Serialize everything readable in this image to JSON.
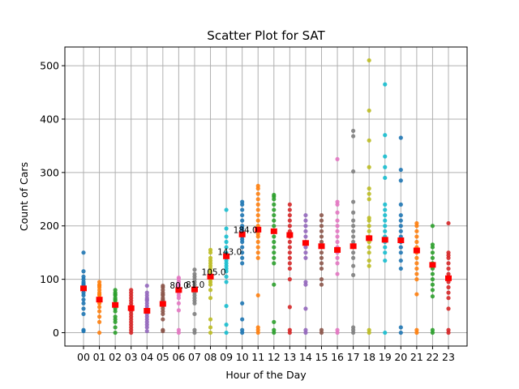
{
  "chart_data": {
    "type": "scatter",
    "title": "Scatter Plot for SAT",
    "xlabel": "Hour of the Day",
    "ylabel": "Count of Cars",
    "categories": [
      "00",
      "01",
      "02",
      "03",
      "04",
      "05",
      "06",
      "07",
      "08",
      "09",
      "10",
      "11",
      "12",
      "13",
      "14",
      "15",
      "16",
      "17",
      "18",
      "19",
      "20",
      "21",
      "22",
      "23"
    ],
    "ylim": [
      -25,
      535
    ],
    "yticks": [
      0,
      100,
      200,
      300,
      400,
      500
    ],
    "grid": true,
    "colors": [
      "#1f77b4",
      "#ff7f0e",
      "#2ca02c",
      "#d62728",
      "#9467bd",
      "#8c564b",
      "#e377c2",
      "#7f7f7f",
      "#bcbd22",
      "#17becf",
      "#1f77b4",
      "#ff7f0e",
      "#2ca02c",
      "#d62728",
      "#9467bd",
      "#8c564b",
      "#e377c2",
      "#7f7f7f",
      "#bcbd22",
      "#17becf",
      "#1f77b4",
      "#ff7f0e",
      "#2ca02c",
      "#d62728"
    ],
    "mean_color": "#ff0000",
    "means": [
      83,
      62,
      52,
      46,
      41,
      54,
      80,
      81,
      105,
      143,
      184,
      193,
      190,
      183,
      168,
      162,
      155,
      162,
      177,
      174,
      173,
      154,
      127,
      102
    ],
    "annotations": [
      {
        "hour": "06",
        "text": "80.0"
      },
      {
        "hour": "07",
        "text": "81.0"
      },
      {
        "hour": "08",
        "text": "105.0"
      },
      {
        "hour": "09",
        "text": "143.0"
      },
      {
        "hour": "10",
        "text": "184.0"
      }
    ],
    "points": [
      [
        3,
        5,
        35,
        45,
        55,
        62,
        70,
        75,
        80,
        85,
        88,
        90,
        92,
        95,
        100,
        105,
        115,
        150
      ],
      [
        0,
        20,
        30,
        40,
        48,
        55,
        60,
        65,
        70,
        72,
        75,
        80,
        85,
        88,
        90,
        95
      ],
      [
        0,
        10,
        20,
        25,
        30,
        40,
        45,
        50,
        55,
        60,
        62,
        65,
        70,
        72,
        75,
        80
      ],
      [
        0,
        5,
        10,
        15,
        20,
        25,
        30,
        35,
        40,
        45,
        50,
        55,
        60,
        65,
        70,
        75,
        80
      ],
      [
        3,
        10,
        15,
        20,
        25,
        30,
        35,
        40,
        45,
        50,
        55,
        60,
        62,
        65,
        70,
        75,
        88
      ],
      [
        3,
        5,
        25,
        35,
        40,
        45,
        50,
        55,
        60,
        62,
        65,
        70,
        72,
        75,
        80,
        85,
        88
      ],
      [
        0,
        5,
        42,
        55,
        65,
        70,
        75,
        80,
        85,
        88,
        90,
        95,
        100,
        103
      ],
      [
        0,
        5,
        35,
        55,
        60,
        65,
        70,
        75,
        80,
        85,
        90,
        95,
        100,
        105,
        110,
        118
      ],
      [
        0,
        10,
        25,
        65,
        80,
        90,
        95,
        100,
        105,
        110,
        115,
        120,
        125,
        130,
        135,
        140,
        150,
        155
      ],
      [
        0,
        15,
        50,
        95,
        105,
        115,
        120,
        125,
        130,
        135,
        140,
        145,
        150,
        160,
        170,
        180,
        195,
        230
      ],
      [
        0,
        5,
        25,
        55,
        130,
        140,
        150,
        160,
        170,
        175,
        180,
        185,
        190,
        195,
        200,
        210,
        220,
        230,
        240,
        245
      ],
      [
        0,
        5,
        10,
        70,
        140,
        150,
        160,
        170,
        180,
        185,
        190,
        195,
        200,
        210,
        220,
        230,
        240,
        250,
        260,
        270,
        275
      ],
      [
        0,
        5,
        20,
        90,
        130,
        140,
        150,
        160,
        170,
        180,
        190,
        200,
        210,
        220,
        230,
        240,
        250,
        255,
        258
      ],
      [
        0,
        5,
        48,
        100,
        120,
        130,
        140,
        150,
        160,
        170,
        180,
        190,
        200,
        210,
        220,
        230,
        240
      ],
      [
        0,
        5,
        45,
        90,
        95,
        140,
        150,
        160,
        170,
        180,
        190,
        200,
        210,
        220
      ],
      [
        0,
        5,
        90,
        100,
        120,
        130,
        140,
        150,
        160,
        170,
        180,
        190,
        200,
        210,
        220
      ],
      [
        0,
        5,
        110,
        130,
        140,
        150,
        160,
        170,
        180,
        190,
        200,
        210,
        225,
        240,
        245,
        325
      ],
      [
        0,
        5,
        10,
        108,
        125,
        140,
        150,
        160,
        170,
        180,
        190,
        200,
        210,
        225,
        245,
        302,
        368,
        378
      ],
      [
        0,
        5,
        125,
        135,
        150,
        160,
        170,
        180,
        190,
        200,
        210,
        215,
        250,
        260,
        270,
        310,
        360,
        416,
        510
      ],
      [
        0,
        135,
        150,
        160,
        170,
        180,
        190,
        200,
        210,
        220,
        230,
        240,
        290,
        310,
        330,
        370,
        465
      ],
      [
        0,
        10,
        120,
        135,
        150,
        160,
        170,
        180,
        190,
        200,
        210,
        220,
        240,
        285,
        305,
        365
      ],
      [
        0,
        5,
        72,
        100,
        110,
        120,
        130,
        140,
        150,
        160,
        170,
        180,
        190,
        200,
        205
      ],
      [
        0,
        5,
        68,
        80,
        90,
        100,
        110,
        120,
        130,
        140,
        150,
        160,
        165,
        200
      ],
      [
        0,
        5,
        45,
        65,
        75,
        85,
        95,
        100,
        110,
        120,
        130,
        140,
        145,
        150,
        205
      ]
    ]
  }
}
